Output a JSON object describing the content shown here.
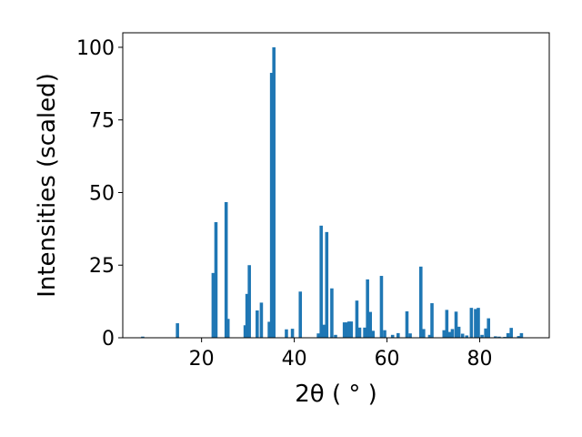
{
  "chart_data": {
    "type": "bar",
    "title": "",
    "xlabel": "2θ ( ° )",
    "ylabel": "Intensities (scaled)",
    "xlim": [
      3,
      95
    ],
    "ylim": [
      0,
      105
    ],
    "xticks": [
      20,
      40,
      60,
      80
    ],
    "yticks": [
      0,
      25,
      50,
      75,
      100
    ],
    "grid": false,
    "legend": "none",
    "bar_color": "#1f77b4",
    "bar_width": 0.7,
    "x": [
      7.3,
      14.8,
      22.5,
      23.1,
      25.3,
      25.7,
      29.4,
      29.8,
      30.3,
      32.0,
      32.9,
      34.6,
      35.1,
      35.6,
      38.3,
      39.6,
      41.3,
      45.2,
      45.8,
      46.4,
      47.0,
      48.1,
      48.9,
      50.8,
      51.3,
      51.8,
      52.3,
      53.5,
      54.1,
      55.2,
      55.8,
      56.4,
      57.0,
      58.8,
      59.5,
      61.2,
      62.4,
      64.3,
      65.0,
      67.3,
      67.9,
      69.2,
      69.7,
      72.3,
      72.9,
      73.5,
      74.1,
      74.9,
      75.5,
      76.3,
      77.2,
      78.2,
      79.1,
      79.7,
      80.5,
      81.3,
      81.9,
      83.4,
      84.2,
      85.4,
      86.1,
      86.8,
      88.4,
      89.0
    ],
    "values": [
      0.4,
      5.0,
      22.3,
      39.8,
      46.7,
      6.5,
      4.3,
      15.1,
      25.0,
      9.4,
      12.1,
      5.5,
      91.2,
      100.0,
      2.9,
      3.1,
      15.9,
      1.5,
      38.6,
      4.5,
      36.4,
      17.0,
      1.0,
      5.3,
      5.3,
      5.6,
      5.6,
      12.8,
      3.5,
      3.5,
      20.1,
      8.9,
      2.4,
      21.3,
      2.6,
      1.0,
      1.6,
      9.1,
      1.5,
      24.5,
      3.0,
      1.0,
      11.9,
      2.6,
      9.6,
      2.0,
      3.0,
      9.0,
      3.8,
      1.4,
      0.8,
      10.3,
      9.9,
      10.3,
      1.0,
      3.2,
      6.7,
      0.5,
      0.4,
      0.3,
      1.6,
      3.4,
      0.6,
      1.6
    ]
  }
}
